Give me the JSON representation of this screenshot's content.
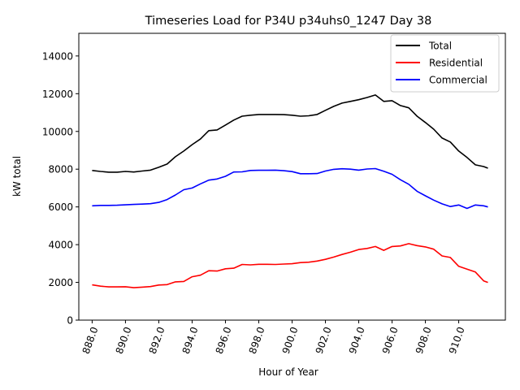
{
  "chart_data": {
    "type": "line",
    "title": "Timeseries Load for P34U p34uhs0_1247  Day 38",
    "xlabel": "Hour of Year",
    "ylabel": "kW total",
    "xlim": [
      887.2,
      912.8
    ],
    "ylim": [
      0,
      15200
    ],
    "xticks": [
      888,
      890,
      892,
      894,
      896,
      898,
      900,
      902,
      904,
      906,
      908,
      910
    ],
    "xtick_labels": [
      "888.0",
      "890.0",
      "892.0",
      "894.0",
      "896.0",
      "898.0",
      "900.0",
      "902.0",
      "904.0",
      "906.0",
      "908.0",
      "910.0"
    ],
    "yticks": [
      0,
      2000,
      4000,
      6000,
      8000,
      10000,
      12000,
      14000
    ],
    "ytick_labels": [
      "0",
      "2000",
      "4000",
      "6000",
      "8000",
      "10000",
      "12000",
      "14000"
    ],
    "grid": false,
    "legend_position": "top-right",
    "x": [
      888.0,
      888.5,
      889.0,
      889.5,
      890.0,
      890.5,
      891.0,
      891.5,
      892.0,
      892.5,
      893.0,
      893.5,
      894.0,
      894.5,
      895.0,
      895.5,
      896.0,
      896.5,
      897.0,
      897.5,
      898.0,
      898.5,
      899.0,
      899.5,
      900.0,
      900.5,
      901.0,
      901.5,
      902.0,
      902.5,
      903.0,
      903.5,
      904.0,
      904.5,
      905.0,
      905.5,
      906.0,
      906.5,
      907.0,
      907.5,
      908.0,
      908.5,
      909.0,
      909.5,
      910.0,
      910.5,
      911.0,
      911.5,
      911.75
    ],
    "series": [
      {
        "name": "Total",
        "color": "#000000",
        "values": [
          7930,
          7880,
          7840,
          7840,
          7880,
          7850,
          7900,
          7950,
          8100,
          8270,
          8660,
          8960,
          9300,
          9600,
          10040,
          10080,
          10340,
          10600,
          10810,
          10860,
          10900,
          10900,
          10900,
          10890,
          10860,
          10810,
          10830,
          10900,
          11120,
          11330,
          11500,
          11590,
          11680,
          11800,
          11930,
          11590,
          11630,
          11370,
          11250,
          10810,
          10470,
          10120,
          9650,
          9440,
          8960,
          8620,
          8230,
          8140,
          8050
        ]
      },
      {
        "name": "Residential",
        "color": "#ff0000",
        "values": [
          1870,
          1800,
          1760,
          1760,
          1770,
          1720,
          1750,
          1780,
          1860,
          1880,
          2030,
          2050,
          2300,
          2380,
          2620,
          2600,
          2720,
          2750,
          2950,
          2930,
          2960,
          2960,
          2950,
          2970,
          2990,
          3050,
          3070,
          3130,
          3220,
          3340,
          3480,
          3600,
          3740,
          3800,
          3900,
          3700,
          3900,
          3930,
          4050,
          3950,
          3880,
          3760,
          3400,
          3320,
          2850,
          2700,
          2550,
          2080,
          2000
        ]
      },
      {
        "name": "Commercial",
        "color": "#0000ff",
        "values": [
          6060,
          6080,
          6080,
          6090,
          6110,
          6130,
          6150,
          6170,
          6240,
          6390,
          6630,
          6910,
          7000,
          7220,
          7420,
          7480,
          7620,
          7850,
          7860,
          7930,
          7940,
          7940,
          7950,
          7920,
          7870,
          7760,
          7760,
          7770,
          7900,
          7990,
          8020,
          8000,
          7950,
          8010,
          8030,
          7890,
          7730,
          7440,
          7200,
          6830,
          6590,
          6360,
          6160,
          6020,
          6100,
          5920,
          6100,
          6060,
          6000
        ]
      }
    ]
  }
}
